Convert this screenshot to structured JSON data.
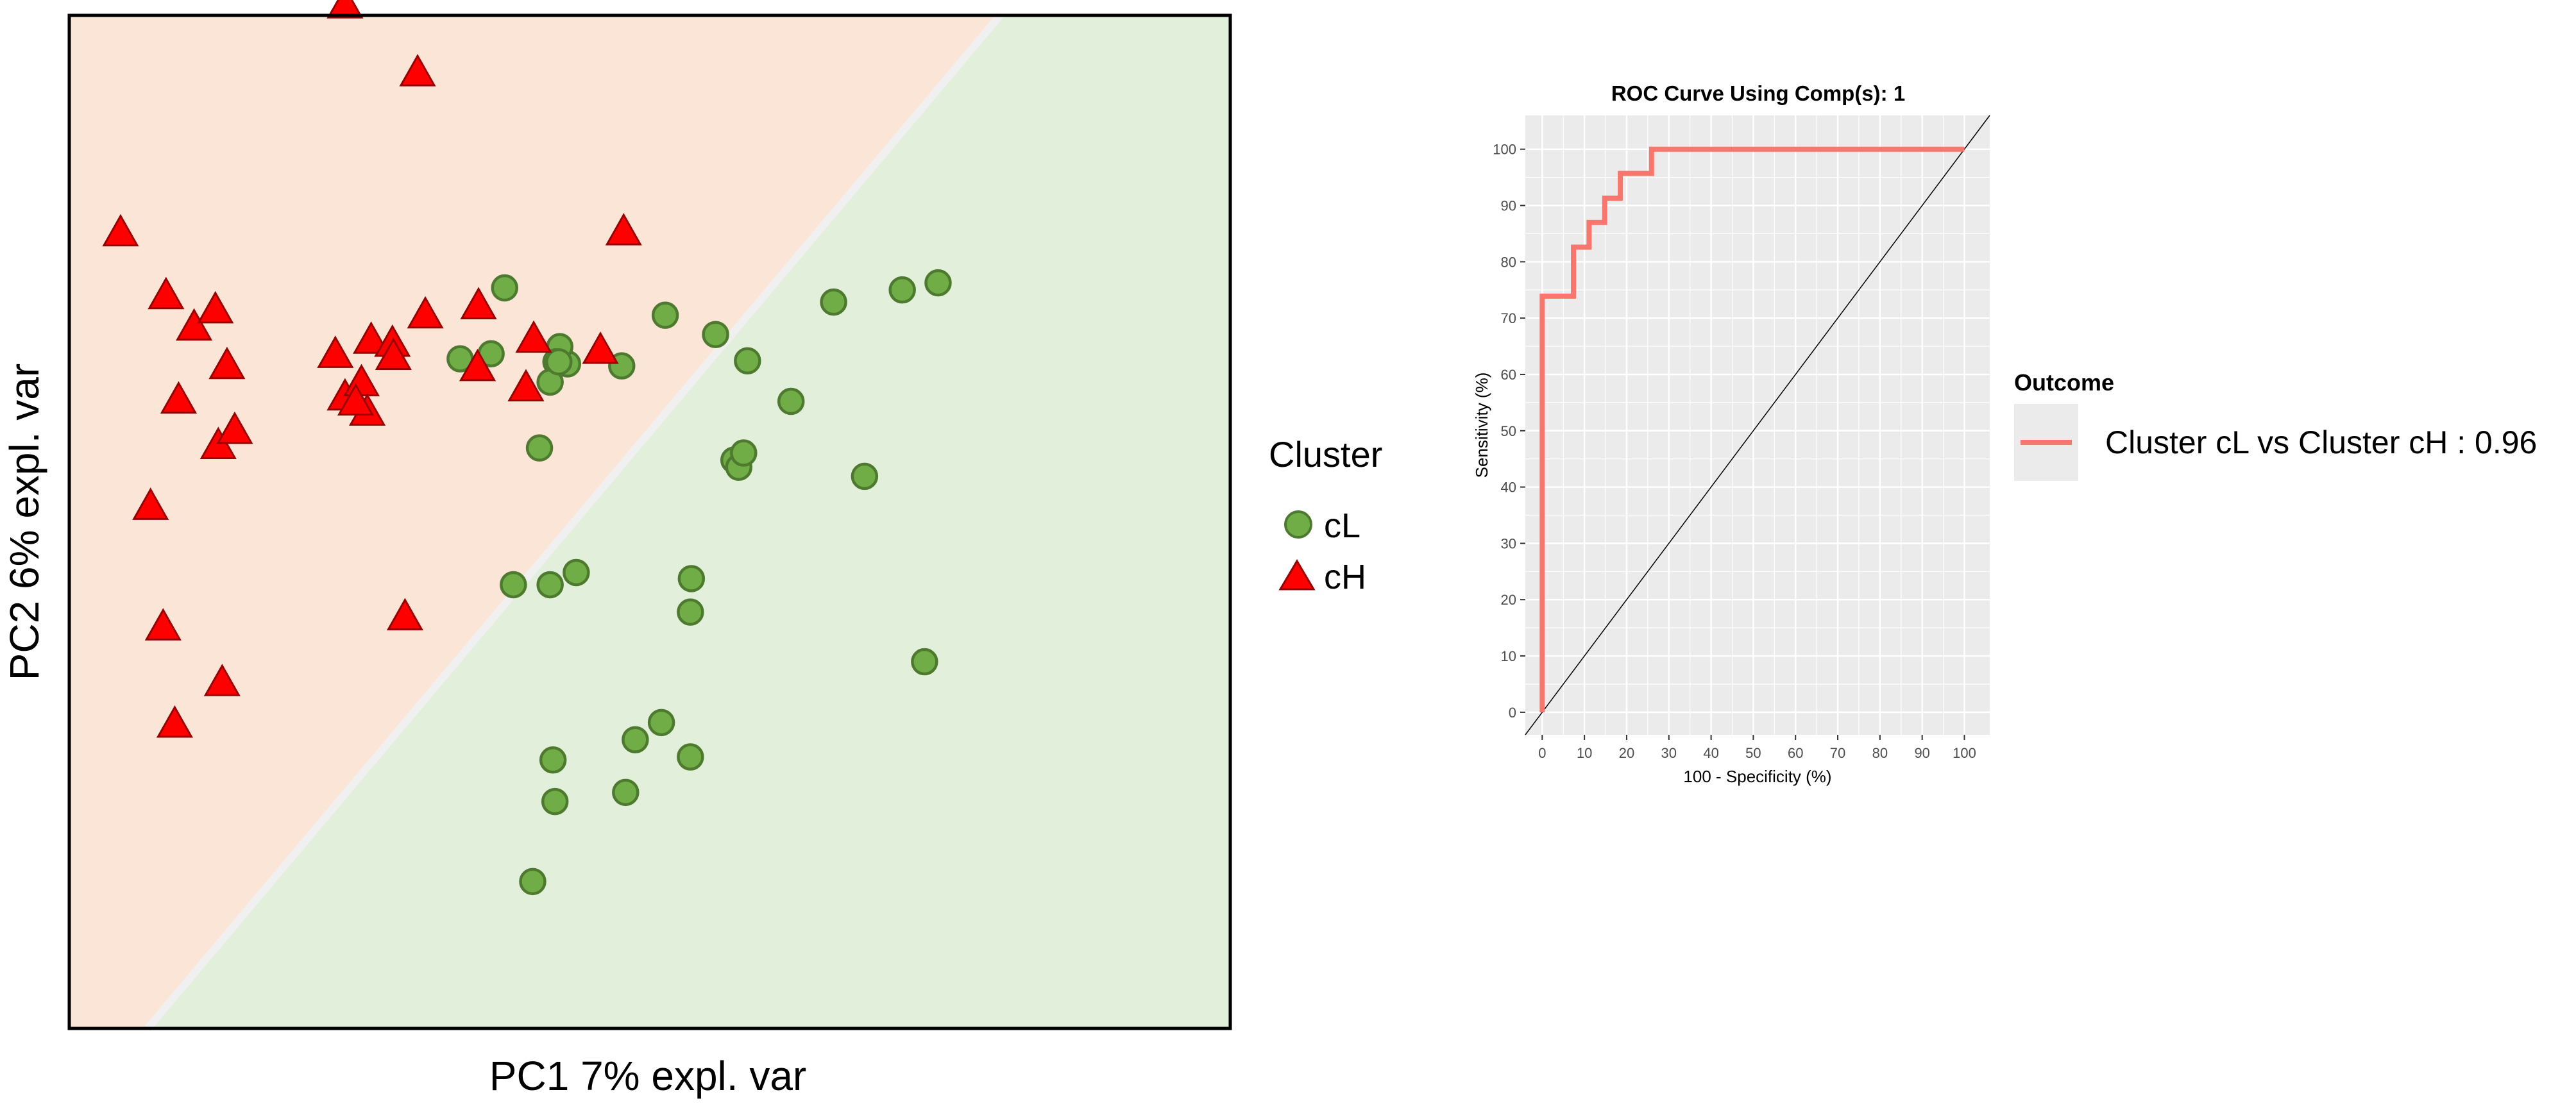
{
  "chart_data": [
    {
      "type": "scatter",
      "title": "",
      "xlabel": "PC1 7% expl. var",
      "ylabel": "PC2 6% expl. var",
      "xlim": [
        -6,
        6
      ],
      "ylim": [
        -5,
        5
      ],
      "legend_title": "Cluster",
      "colors": {
        "cL": "#70ad47",
        "cH": "#ff0000",
        "region_cH": "#fbe5d6",
        "region_cL": "#e2efda",
        "boundary": "#f0f0f0"
      },
      "boundary_line": [
        [
          -5.19,
          -5
        ],
        [
          3.62,
          5
        ]
      ],
      "series": [
        {
          "name": "cL",
          "marker": "circle",
          "points": [
            [
              -1.5,
              2.31
            ],
            [
              0.16,
              2.04
            ],
            [
              -1.41,
              -0.62
            ],
            [
              -0.29,
              1.54
            ],
            [
              0.12,
              -1.98
            ],
            [
              -0.85,
              1.56
            ],
            [
              -0.93,
              1.73
            ],
            [
              0.87,
              0.61
            ],
            [
              -1.0,
              -2.35
            ],
            [
              -0.98,
              -2.76
            ],
            [
              -0.25,
              -2.67
            ],
            [
              -0.97,
              1.58
            ],
            [
              -0.15,
              -2.15
            ],
            [
              -1.64,
              1.66
            ],
            [
              2.22,
              0.45
            ],
            [
              1.9,
              2.17
            ],
            [
              2.98,
              2.36
            ],
            [
              2.61,
              2.29
            ],
            [
              -1.96,
              1.61
            ],
            [
              2.84,
              -1.38
            ],
            [
              1.01,
              1.59
            ],
            [
              0.42,
              -2.32
            ],
            [
              -1.21,
              -3.55
            ],
            [
              0.68,
              1.85
            ],
            [
              1.46,
              1.19
            ],
            [
              0.92,
              0.54
            ],
            [
              -0.76,
              -0.5
            ],
            [
              0.42,
              -0.89
            ],
            [
              0.97,
              0.68
            ],
            [
              -1.14,
              0.73
            ],
            [
              0.43,
              -0.56
            ],
            [
              -1.03,
              -0.62
            ],
            [
              -1.03,
              1.38
            ],
            [
              -0.94,
              1.58
            ]
          ]
        },
        {
          "name": "cH",
          "marker": "triangle",
          "points": [
            [
              -3.15,
              5.09
            ],
            [
              -2.4,
              4.42
            ],
            [
              -0.27,
              2.85
            ],
            [
              -1.2,
              1.79
            ],
            [
              -0.51,
              1.68
            ],
            [
              -5.0,
              2.22
            ],
            [
              -4.71,
              1.91
            ],
            [
              -4.49,
              2.08
            ],
            [
              -4.37,
              1.53
            ],
            [
              -4.87,
              1.19
            ],
            [
              -4.46,
              0.74
            ],
            [
              -4.29,
              0.89
            ],
            [
              -3.25,
              1.64
            ],
            [
              -3.15,
              1.22
            ],
            [
              -2.88,
              1.78
            ],
            [
              -2.98,
              1.36
            ],
            [
              -2.92,
              1.07
            ],
            [
              -2.32,
              2.03
            ],
            [
              -2.66,
              1.75
            ],
            [
              -1.77,
              2.12
            ],
            [
              -1.28,
              1.31
            ],
            [
              -1.78,
              1.51
            ],
            [
              -3.04,
              1.17
            ],
            [
              -2.65,
              1.62
            ],
            [
              -5.47,
              2.84
            ],
            [
              -5.03,
              -1.05
            ],
            [
              -4.42,
              -1.6
            ],
            [
              -4.91,
              -2.01
            ],
            [
              -5.16,
              0.14
            ],
            [
              -2.53,
              -0.95
            ]
          ]
        }
      ]
    },
    {
      "type": "line",
      "title": "ROC Curve Using Comp(s): 1",
      "xlabel": "100 - Specificity (%)",
      "ylabel": "Sensitivity (%)",
      "xlim": [
        -4,
        106
      ],
      "ylim": [
        -4,
        106
      ],
      "xticks": [
        "0",
        "10",
        "20",
        "30",
        "40",
        "50",
        "60",
        "70",
        "80",
        "90",
        "100"
      ],
      "yticks": [
        "0",
        "10",
        "20",
        "30",
        "40",
        "50",
        "60",
        "70",
        "80",
        "90",
        "100"
      ],
      "legend_title": "Outcome",
      "series": [
        {
          "name": "Cluster cL vs Cluster cH : 0.96",
          "color": "#f8766d",
          "x": [
            0,
            0,
            0,
            7.4,
            7.4,
            11.1,
            11.1,
            14.8,
            14.8,
            18.5,
            18.5,
            25.9,
            25.9,
            100
          ],
          "y": [
            0,
            4.3,
            73.9,
            73.9,
            82.6,
            82.6,
            87.0,
            87.0,
            91.3,
            91.3,
            95.7,
            95.7,
            100,
            100
          ]
        },
        {
          "name": "reference",
          "color": "#000000",
          "x": [
            -4,
            106
          ],
          "y": [
            -4,
            106
          ]
        }
      ]
    }
  ]
}
